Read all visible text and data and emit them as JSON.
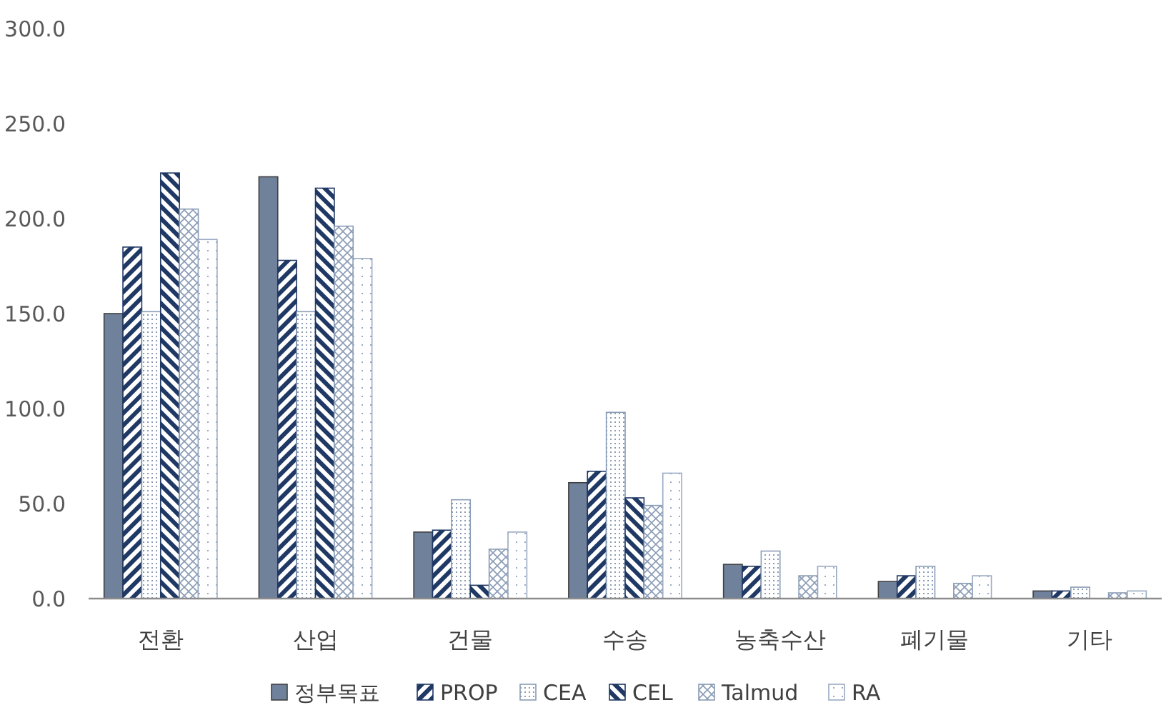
{
  "chart_data": {
    "type": "bar",
    "categories": [
      "전환",
      "산업",
      "건물",
      "수송",
      "농축수산",
      "폐기물",
      "기타"
    ],
    "series": [
      {
        "name": "정부목표",
        "color": "#6f819b",
        "values": [
          150,
          222,
          35,
          61,
          18,
          9,
          4
        ]
      },
      {
        "name": "PROP",
        "color": "#1f3864",
        "values": [
          185,
          178,
          36,
          67,
          17,
          12,
          4
        ]
      },
      {
        "name": "CEA",
        "color": "#8a9cb6",
        "values": [
          151,
          151,
          52,
          98,
          25,
          17,
          6
        ]
      },
      {
        "name": "CEL",
        "color": "#1f3864",
        "values": [
          224,
          216,
          7,
          53,
          null,
          null,
          null
        ]
      },
      {
        "name": "Talmud",
        "color": "#8a9cb6",
        "values": [
          205,
          196,
          26,
          49,
          12,
          8,
          3
        ]
      },
      {
        "name": "RA",
        "color": "#9aaac2",
        "values": [
          189,
          179,
          35,
          66,
          17,
          12,
          4
        ]
      }
    ],
    "ylim": [
      0,
      300
    ],
    "yticks": [
      {
        "value": 0,
        "label": "0.0"
      },
      {
        "value": 50,
        "label": "50.0"
      },
      {
        "value": 100,
        "label": "100.0"
      },
      {
        "value": 150,
        "label": "150.0"
      },
      {
        "value": 200,
        "label": "200.0"
      },
      {
        "value": 250,
        "label": "250.0"
      },
      {
        "value": 300,
        "label": "300.0"
      }
    ],
    "grid": false,
    "legend": "bottom"
  }
}
